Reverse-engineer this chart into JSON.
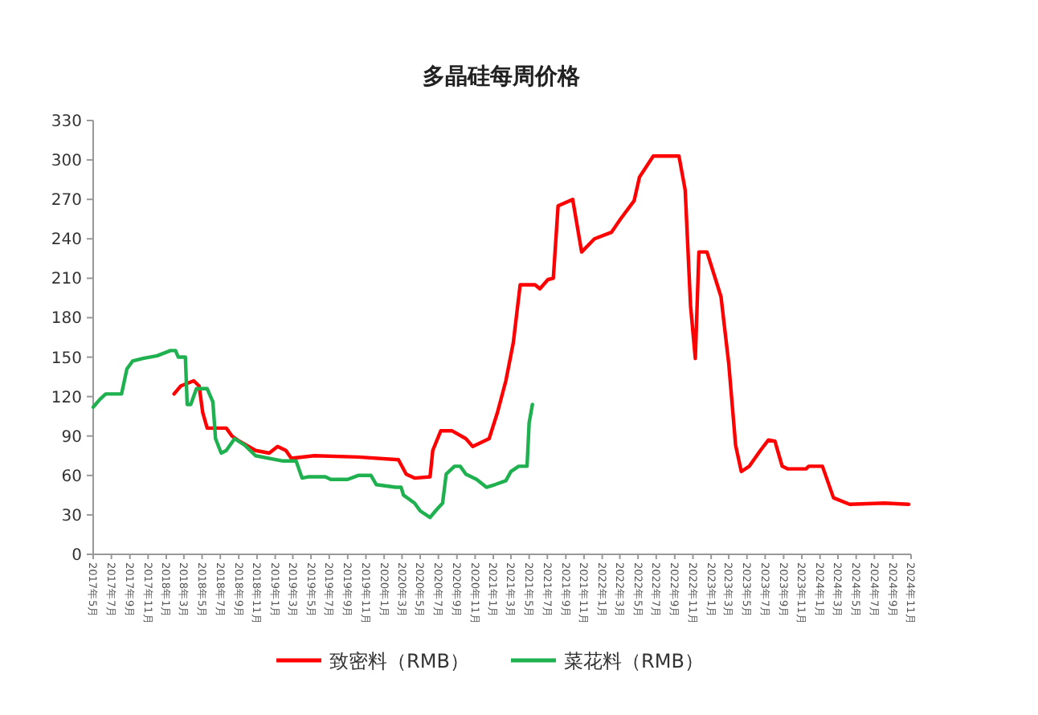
{
  "chart_data": {
    "type": "line",
    "title": "多晶硅每周价格",
    "legend": "bottom",
    "xlim": [
      "2017-05",
      "2024-11"
    ],
    "ylim": [
      0,
      330
    ],
    "yticks": [
      0,
      30,
      60,
      90,
      120,
      150,
      180,
      210,
      240,
      270,
      300,
      330
    ],
    "xticks": [
      {
        "value": "2017-05",
        "label": "2017年5月"
      },
      {
        "value": "2017-07",
        "label": "2017年7月"
      },
      {
        "value": "2017-09",
        "label": "2017年9月"
      },
      {
        "value": "2017-11",
        "label": "2017年11月"
      },
      {
        "value": "2018-01",
        "label": "2018年1月"
      },
      {
        "value": "2018-03",
        "label": "2018年3月"
      },
      {
        "value": "2018-05",
        "label": "2018年5月"
      },
      {
        "value": "2018-07",
        "label": "2018年7月"
      },
      {
        "value": "2018-09",
        "label": "2018年9月"
      },
      {
        "value": "2018-11",
        "label": "2018年11月"
      },
      {
        "value": "2019-01",
        "label": "2019年1月"
      },
      {
        "value": "2019-03",
        "label": "2019年3月"
      },
      {
        "value": "2019-05",
        "label": "2019年5月"
      },
      {
        "value": "2019-07",
        "label": "2019年7月"
      },
      {
        "value": "2019-09",
        "label": "2019年9月"
      },
      {
        "value": "2019-11",
        "label": "2019年11月"
      },
      {
        "value": "2020-01",
        "label": "2020年1月"
      },
      {
        "value": "2020-03",
        "label": "2020年3月"
      },
      {
        "value": "2020-05",
        "label": "2020年5月"
      },
      {
        "value": "2020-07",
        "label": "2020年7月"
      },
      {
        "value": "2020-09",
        "label": "2020年9月"
      },
      {
        "value": "2020-11",
        "label": "2020年11月"
      },
      {
        "value": "2021-01",
        "label": "2021年1月"
      },
      {
        "value": "2021-03",
        "label": "2021年3月"
      },
      {
        "value": "2021-05",
        "label": "2021年5月"
      },
      {
        "value": "2021-07",
        "label": "2021年7月"
      },
      {
        "value": "2021-09",
        "label": "2021年9月"
      },
      {
        "value": "2021-11",
        "label": "2021年11月"
      },
      {
        "value": "2022-01",
        "label": "2022年1月"
      },
      {
        "value": "2022-03",
        "label": "2022年3月"
      },
      {
        "value": "2022-05",
        "label": "2022年5月"
      },
      {
        "value": "2022-07",
        "label": "2022年7月"
      },
      {
        "value": "2022-09",
        "label": "2022年9月"
      },
      {
        "value": "2022-11",
        "label": "2022年11月"
      },
      {
        "value": "2023-01",
        "label": "2023年1月"
      },
      {
        "value": "2023-03",
        "label": "2023年3月"
      },
      {
        "value": "2023-05",
        "label": "2023年5月"
      },
      {
        "value": "2023-07",
        "label": "2023年7月"
      },
      {
        "value": "2023-09",
        "label": "2023年9月"
      },
      {
        "value": "2023-11",
        "label": "2023年11月"
      },
      {
        "value": "2024-01",
        "label": "2024年1月"
      },
      {
        "value": "2024-03",
        "label": "2024年3月"
      },
      {
        "value": "2024-05",
        "label": "2024年5月"
      },
      {
        "value": "2024-07",
        "label": "2024年7月"
      },
      {
        "value": "2024-09",
        "label": "2024年9月"
      },
      {
        "value": "2024-11",
        "label": "2024年11月"
      }
    ],
    "series": [
      {
        "name": "致密料（RMB）",
        "color": "#ff0000",
        "x": [
          "2018-01-27",
          "2018-02-18",
          "2018-04-03",
          "2018-04-21",
          "2018-05-03",
          "2018-05-18",
          "2018-07-21",
          "2018-08-09",
          "2018-09-03",
          "2018-10-27",
          "2018-12-12",
          "2019-01-09",
          "2019-02-06",
          "2019-02-24",
          "2019-05-12",
          "2019-10-06",
          "2020-02-18",
          "2020-03-15",
          "2020-04-12",
          "2020-06-03",
          "2020-06-12",
          "2020-07-09",
          "2020-08-15",
          "2020-10-01",
          "2020-10-24",
          "2020-12-18",
          "2021-01-15",
          "2021-02-12",
          "2021-03-09",
          "2021-04-01",
          "2021-05-21",
          "2021-06-06",
          "2021-07-03",
          "2021-07-21",
          "2021-08-06",
          "2021-09-24",
          "2021-10-24",
          "2021-12-06",
          "2022-02-01",
          "2022-03-03",
          "2022-04-18",
          "2022-05-06",
          "2022-06-21",
          "2022-09-15",
          "2022-10-06",
          "2022-10-24",
          "2022-11-09",
          "2022-11-21",
          "2022-12-18",
          "2023-02-03",
          "2023-03-01",
          "2023-03-24",
          "2023-04-12",
          "2023-05-09",
          "2023-06-15",
          "2023-07-12",
          "2023-08-03",
          "2023-08-27",
          "2023-09-15",
          "2023-11-15",
          "2023-11-24",
          "2024-01-09",
          "2024-02-15",
          "2024-04-09",
          "2024-08-03",
          "2024-10-24"
        ],
        "values": [
          122,
          128,
          132,
          128,
          108,
          96,
          96,
          90,
          86,
          79,
          77,
          82,
          79,
          73,
          75,
          74,
          72,
          61,
          58,
          59,
          79,
          94,
          94,
          88,
          82,
          88,
          108,
          132,
          161,
          205,
          205,
          202,
          209,
          210,
          265,
          270,
          230,
          240,
          245,
          255,
          269,
          287,
          303,
          303,
          277,
          189,
          149,
          230,
          230,
          196,
          145,
          83,
          63,
          67,
          79,
          87,
          86,
          67,
          65,
          65,
          67,
          67,
          43,
          38,
          39,
          38
        ]
      },
      {
        "name": "菜花料（RMB）",
        "color": "#1fb04f",
        "x": [
          "2017-05-01",
          "2017-05-24",
          "2017-06-12",
          "2017-08-04",
          "2017-08-22",
          "2017-09-10",
          "2017-10-15",
          "2017-12-01",
          "2018-01-15",
          "2018-02-01",
          "2018-02-10",
          "2018-03-06",
          "2018-03-12",
          "2018-03-24",
          "2018-04-12",
          "2018-05-18",
          "2018-06-06",
          "2018-06-15",
          "2018-07-04",
          "2018-07-21",
          "2018-08-18",
          "2018-09-21",
          "2018-10-27",
          "2019-01-27",
          "2019-03-12",
          "2019-04-01",
          "2019-04-24",
          "2019-06-18",
          "2019-07-06",
          "2019-09-01",
          "2019-10-06",
          "2019-11-18",
          "2019-12-06",
          "2020-02-09",
          "2020-02-27",
          "2020-03-06",
          "2020-04-12",
          "2020-05-01",
          "2020-06-03",
          "2020-06-21",
          "2020-07-15",
          "2020-07-27",
          "2020-08-24",
          "2020-09-12",
          "2020-10-01",
          "2020-11-06",
          "2020-12-09",
          "2021-01-06",
          "2021-02-12",
          "2021-03-01",
          "2021-03-27",
          "2021-04-24",
          "2021-05-01",
          "2021-05-12"
        ],
        "values": [
          112,
          118,
          122,
          122,
          141,
          147,
          149,
          151,
          155,
          155,
          150,
          150,
          114,
          114,
          126,
          126,
          116,
          88,
          77,
          79,
          88,
          83,
          75,
          71,
          71,
          58,
          59,
          59,
          57,
          57,
          60,
          60,
          53,
          51,
          51,
          45,
          39,
          33,
          28,
          33,
          39,
          61,
          67,
          67,
          61,
          57,
          51,
          53,
          56,
          63,
          67,
          67,
          100,
          114
        ]
      }
    ]
  }
}
